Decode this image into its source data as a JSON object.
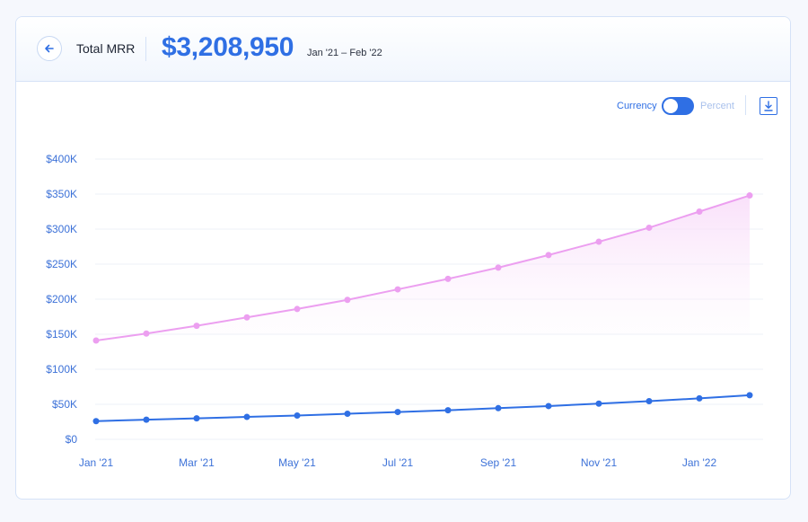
{
  "header": {
    "metric_name": "Total MRR",
    "total_value": "$3,208,950",
    "date_range": "Jan '21 – Feb '22"
  },
  "toolbar": {
    "toggle_left_label": "Currency",
    "toggle_right_label": "Percent",
    "toggle_state": "Currency"
  },
  "icons": {
    "back": "arrow-left-icon",
    "download": "download-icon"
  },
  "colors": {
    "accent": "#2f6fe4",
    "series_total": "#ec9ff0",
    "series_new": "#2f6fe4",
    "grid": "#eef1f7"
  },
  "chart_data": {
    "type": "line",
    "x": [
      "Jan '21",
      "Feb '21",
      "Mar '21",
      "Apr '21",
      "May '21",
      "Jun '21",
      "Jul '21",
      "Aug '21",
      "Sep '21",
      "Oct '21",
      "Nov '21",
      "Dec '21",
      "Jan '22",
      "Feb '22"
    ],
    "x_tick_labels": [
      "Jan '21",
      "Mar '21",
      "May '21",
      "Jul '21",
      "Sep '21",
      "Nov '21",
      "Jan '22"
    ],
    "y_tick_labels": [
      "$0",
      "$50K",
      "$100K",
      "$150K",
      "$200K",
      "$250K",
      "$300K",
      "$350K",
      "$400K"
    ],
    "ylim": [
      0,
      400000
    ],
    "y_ticks": [
      0,
      50000,
      100000,
      150000,
      200000,
      250000,
      300000,
      350000,
      400000
    ],
    "grid": true,
    "series": [
      {
        "values": [
          141000,
          151000,
          162000,
          174000,
          186000,
          199000,
          214000,
          229000,
          245000,
          263000,
          282000,
          302000,
          325000,
          348000
        ],
        "color": "#ec9ff0",
        "area_fill": true
      },
      {
        "values": [
          26000,
          28000,
          30000,
          32000,
          34000,
          36500,
          39000,
          41500,
          44500,
          47500,
          51000,
          54500,
          58500,
          63000
        ],
        "color": "#2f6fe4",
        "area_fill": false
      }
    ]
  }
}
